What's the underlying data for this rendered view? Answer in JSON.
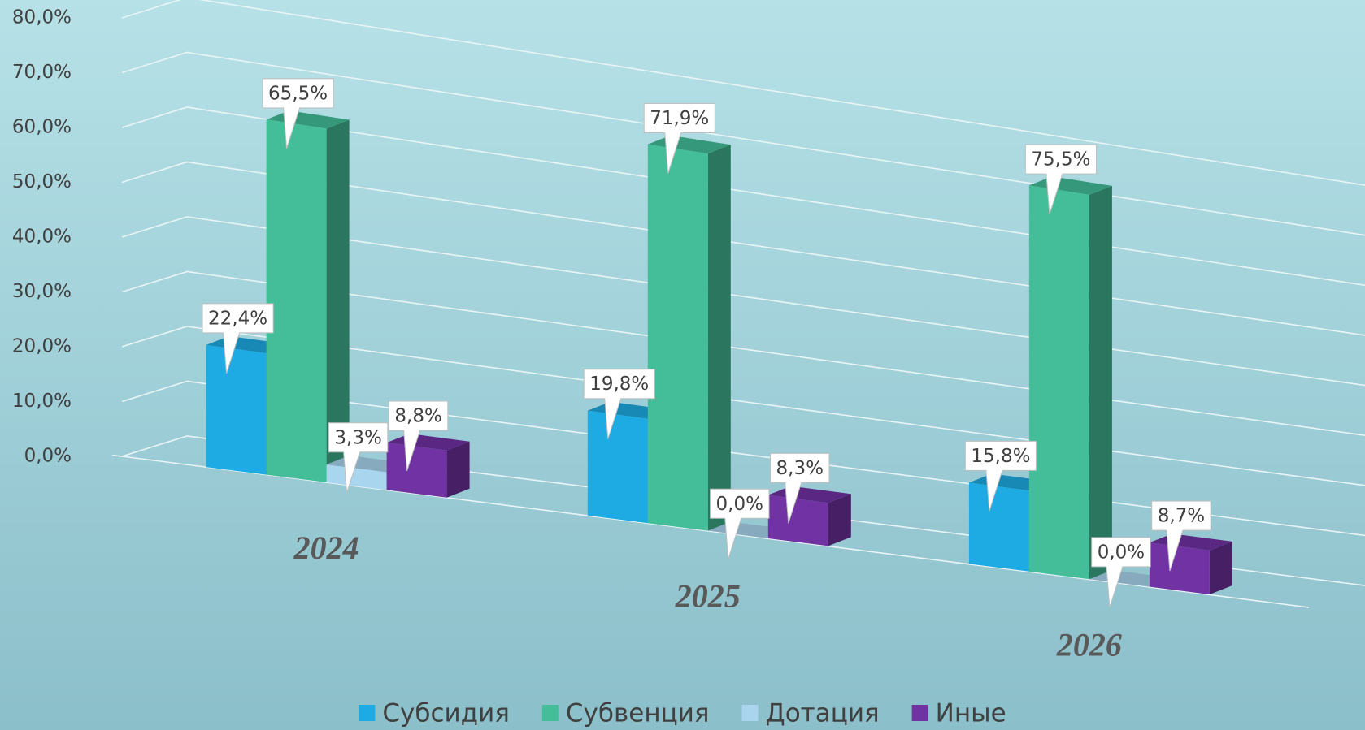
{
  "chart_data": {
    "type": "bar3d",
    "categories": [
      "2024",
      "2025",
      "2026"
    ],
    "series": [
      {
        "name": "Субсидия",
        "color": "#1eaae2",
        "values": [
          22.4,
          19.8,
          15.8
        ],
        "value_labels": [
          "22,4%",
          "19,8%",
          "15,8%"
        ]
      },
      {
        "name": "Субвенция",
        "color": "#43be98",
        "values": [
          65.5,
          71.9,
          75.5
        ],
        "value_labels": [
          "65,5%",
          "71,9%",
          "75,5%"
        ]
      },
      {
        "name": "Дотация",
        "color": "#a9d5ee",
        "values": [
          3.3,
          0,
          0
        ],
        "value_labels": [
          "3,3%",
          "0,0%",
          "0,0%"
        ]
      },
      {
        "name": "Иные",
        "color": "#7132a3",
        "values": [
          8.8,
          8.3,
          8.7
        ],
        "value_labels": [
          "8,8%",
          "8,3%",
          "8,7%"
        ]
      }
    ],
    "ylim": [
      0,
      80
    ],
    "yticks": [
      {
        "value": 0,
        "label": "0,0%"
      },
      {
        "value": 10,
        "label": "10,0%"
      },
      {
        "value": 20,
        "label": "20,0%"
      },
      {
        "value": 30,
        "label": "30,0%"
      },
      {
        "value": 40,
        "label": "40,0%"
      },
      {
        "value": 50,
        "label": "50,0%"
      },
      {
        "value": 60,
        "label": "60,0%"
      },
      {
        "value": 70,
        "label": "70,0%"
      },
      {
        "value": 80,
        "label": "80,0%"
      }
    ],
    "grid": true,
    "legend": "bottom"
  }
}
